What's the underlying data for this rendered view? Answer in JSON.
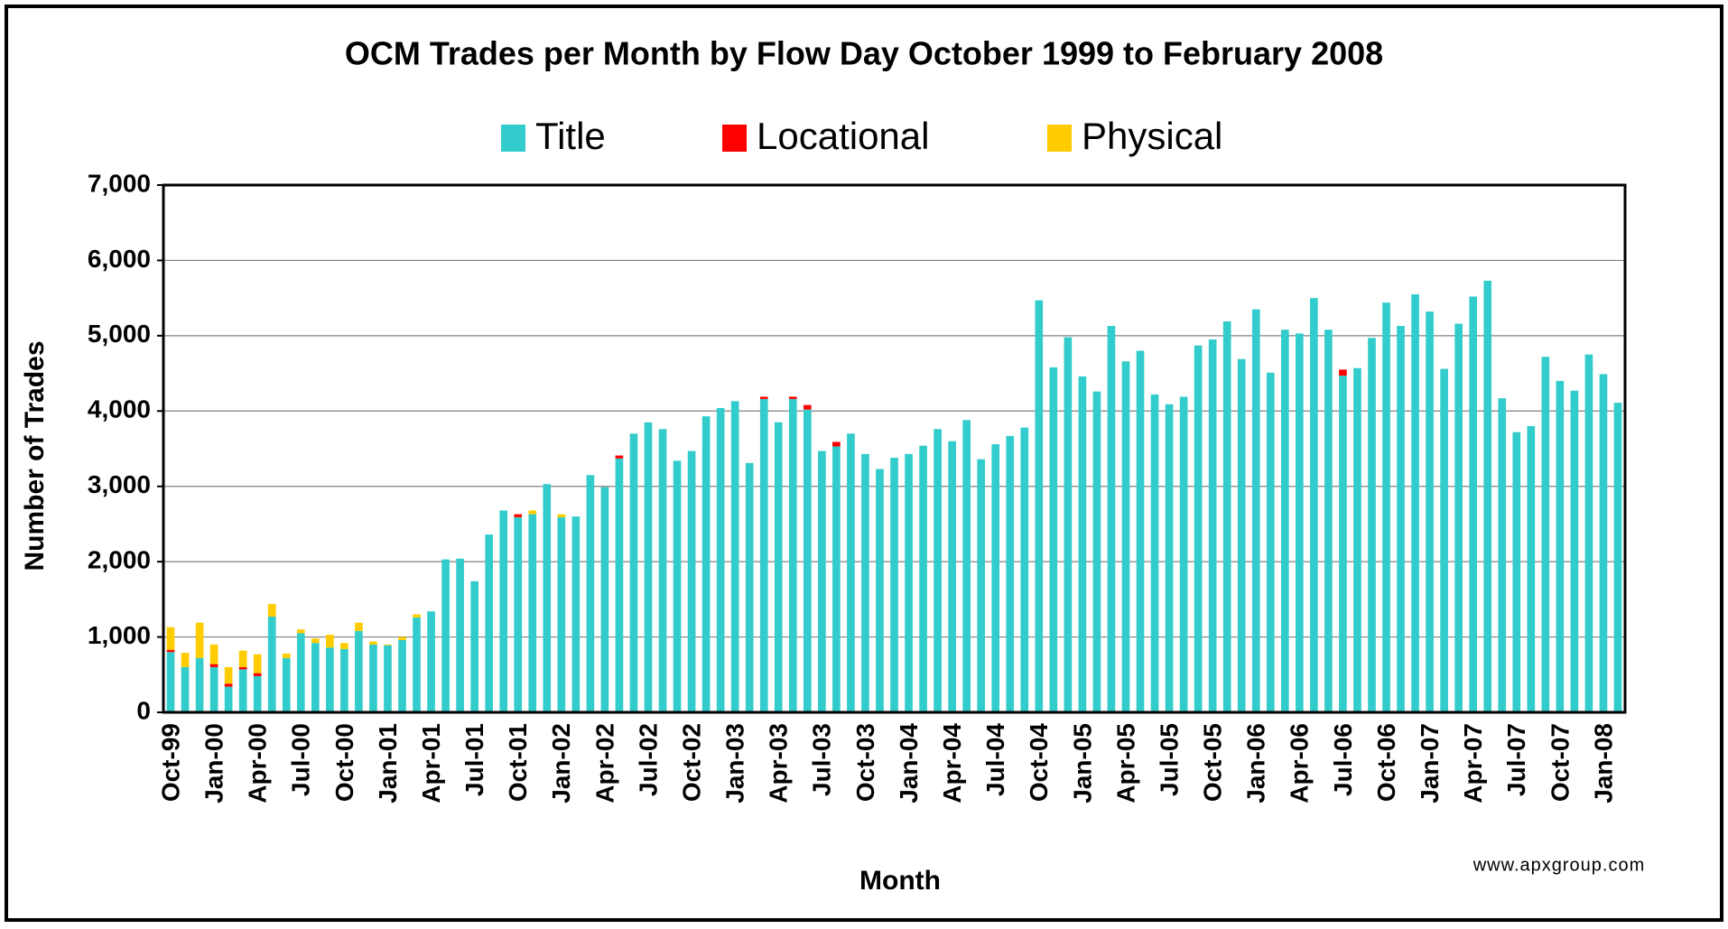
{
  "chart_data": {
    "type": "stacked_bar",
    "title": "OCM Trades per Month by Flow Day October 1999 to February 2008",
    "x_label": "Month",
    "y_label": "Number of Trades",
    "source": "www.apxgroup.com",
    "categories": [
      "Oct-99",
      null,
      null,
      "Jan-00",
      null,
      null,
      "Apr-00",
      null,
      null,
      "Jul-00",
      null,
      null,
      "Oct-00",
      null,
      null,
      "Jan-01",
      null,
      null,
      "Apr-01",
      null,
      null,
      "Jul-01",
      null,
      null,
      "Oct-01",
      null,
      null,
      "Jan-02",
      null,
      null,
      "Apr-02",
      null,
      null,
      "Jul-02",
      null,
      null,
      "Oct-02",
      null,
      null,
      "Jan-03",
      null,
      null,
      "Apr-03",
      null,
      null,
      "Jul-03",
      null,
      null,
      "Oct-03",
      null,
      null,
      "Jan-04",
      null,
      null,
      "Apr-04",
      null,
      null,
      "Jul-04",
      null,
      null,
      "Oct-04",
      null,
      null,
      "Jan-05",
      null,
      null,
      "Apr-05",
      null,
      null,
      "Jul-05",
      null,
      null,
      "Oct-05",
      null,
      null,
      "Jan-06",
      null,
      null,
      "Apr-06",
      null,
      null,
      "Jul-06",
      null,
      null,
      "Oct-06",
      null,
      null,
      "Jan-07",
      null,
      null,
      "Apr-07",
      null,
      null,
      "Jul-07",
      null,
      null,
      "Oct-07",
      null,
      null,
      "Jan-08",
      null
    ],
    "series": [
      {
        "name": "Title",
        "color": "#33cccc",
        "values": [
          800,
          600,
          720,
          600,
          340,
          570,
          480,
          1270,
          720,
          1050,
          920,
          860,
          840,
          1080,
          900,
          890,
          960,
          1260,
          1340,
          2030,
          2040,
          1740,
          2360,
          2680,
          2590,
          2630,
          3030,
          2590,
          2600,
          3150,
          2990,
          3370,
          3700,
          3850,
          3760,
          3340,
          3470,
          3930,
          4040,
          4130,
          3310,
          4160,
          3850,
          4160,
          4020,
          3470,
          3530,
          3700,
          3430,
          3230,
          3380,
          3430,
          3540,
          3760,
          3600,
          3880,
          3360,
          3560,
          3670,
          3780,
          5470,
          4580,
          4980,
          4460,
          4260,
          5130,
          4660,
          4800,
          4220,
          4090,
          4190,
          4870,
          4950,
          5190,
          4690,
          5350,
          4510,
          5080,
          5030,
          5500,
          5080,
          4470,
          4570,
          4970,
          5440,
          5130,
          5550,
          5320,
          4560,
          5160,
          5520,
          5730,
          4170,
          3720,
          3800,
          4720,
          4400,
          4270,
          4750,
          4490,
          4110
        ]
      },
      {
        "name": "Locational",
        "color": "#ff0000",
        "values": [
          30,
          0,
          0,
          40,
          40,
          30,
          40,
          0,
          0,
          0,
          0,
          0,
          0,
          0,
          0,
          0,
          0,
          0,
          0,
          0,
          0,
          0,
          0,
          0,
          40,
          0,
          0,
          0,
          0,
          0,
          0,
          40,
          0,
          0,
          0,
          0,
          0,
          0,
          0,
          0,
          0,
          30,
          0,
          30,
          60,
          0,
          60,
          0,
          0,
          0,
          0,
          0,
          0,
          0,
          0,
          0,
          0,
          0,
          0,
          0,
          0,
          0,
          0,
          0,
          0,
          0,
          0,
          0,
          0,
          0,
          0,
          0,
          0,
          0,
          0,
          0,
          0,
          0,
          0,
          0,
          0,
          80,
          0,
          0,
          0,
          0,
          0,
          0,
          0,
          0,
          0,
          0,
          0,
          0,
          0,
          0,
          0,
          0,
          0,
          0,
          0
        ]
      },
      {
        "name": "Physical",
        "color": "#ffcc00",
        "values": [
          300,
          190,
          470,
          260,
          220,
          220,
          250,
          170,
          60,
          50,
          60,
          170,
          80,
          110,
          40,
          10,
          40,
          40,
          0,
          0,
          0,
          0,
          0,
          0,
          0,
          50,
          0,
          40,
          0,
          0,
          0,
          0,
          0,
          0,
          0,
          0,
          0,
          0,
          0,
          0,
          0,
          0,
          0,
          0,
          0,
          0,
          0,
          0,
          0,
          0,
          0,
          0,
          0,
          0,
          0,
          0,
          0,
          0,
          0,
          0,
          0,
          0,
          0,
          0,
          0,
          0,
          0,
          0,
          0,
          0,
          0,
          0,
          0,
          0,
          0,
          0,
          0,
          0,
          0,
          0,
          0,
          0,
          0,
          0,
          0,
          0,
          0,
          0,
          0,
          0,
          0,
          0,
          0,
          0,
          0,
          0,
          0,
          0,
          0,
          0,
          0
        ]
      }
    ],
    "ylim": [
      0,
      7000
    ],
    "yticks": [
      0,
      {
        "value": 1000,
        "label": "1,000"
      },
      {
        "value": 2000,
        "label": "2,000"
      },
      {
        "value": 3000,
        "label": "3,000"
      },
      {
        "value": 4000,
        "label": "4,000"
      },
      {
        "value": 5000,
        "label": "5,000"
      },
      {
        "value": 6000,
        "label": "6,000"
      },
      {
        "value": 7000,
        "label": "7,000"
      }
    ],
    "grid": true,
    "legend": "top"
  }
}
